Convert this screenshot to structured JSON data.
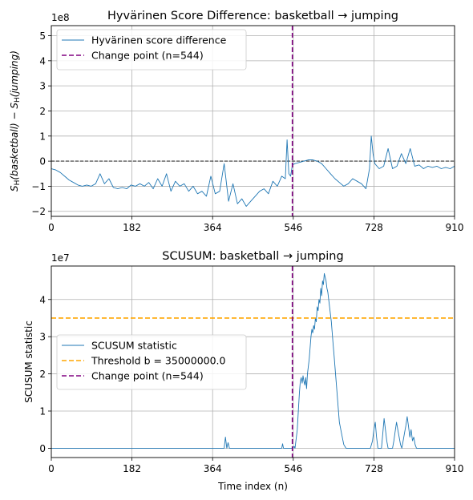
{
  "chart_data": [
    {
      "type": "line",
      "title": "Hyvärinen Score Difference: basketball → jumping",
      "xlabel": "",
      "ylabel_html": "S_H(basketball) − S_H(jumping)",
      "ylabel_parts": [
        "S",
        "H",
        "(basketball) − S",
        "H",
        "(jumping)"
      ],
      "y_multiplier_label": "1e8",
      "xlim": [
        0,
        910
      ],
      "ylim": [
        -2.2,
        5.4
      ],
      "x_ticks": [
        0,
        182,
        364,
        546,
        728,
        910
      ],
      "x_tick_labels": [
        "0",
        "182",
        "364",
        "546",
        "728",
        "910"
      ],
      "y_ticks": [
        -2,
        -1,
        0,
        1,
        2,
        3,
        4,
        5
      ],
      "y_tick_labels": [
        "−2",
        "−1",
        "0",
        "1",
        "2",
        "3",
        "4",
        "5"
      ],
      "grid": true,
      "legend_position": "upper-left",
      "hline": {
        "y": 0,
        "style": "dashed",
        "color": "#000000"
      },
      "change_point": {
        "x": 544,
        "label": "Change point (n=544)",
        "color": "#800080"
      },
      "series": [
        {
          "name": "Hyvärinen score difference",
          "color": "#1f77b4",
          "x": [
            0,
            10,
            20,
            30,
            40,
            50,
            60,
            70,
            80,
            90,
            100,
            110,
            120,
            130,
            140,
            150,
            160,
            170,
            180,
            190,
            200,
            210,
            220,
            230,
            240,
            250,
            260,
            270,
            280,
            290,
            300,
            310,
            320,
            330,
            340,
            350,
            360,
            370,
            380,
            390,
            400,
            410,
            420,
            430,
            440,
            450,
            460,
            470,
            480,
            490,
            500,
            510,
            520,
            528,
            532,
            536,
            540,
            544,
            550,
            560,
            570,
            580,
            590,
            600,
            610,
            620,
            630,
            640,
            650,
            660,
            670,
            680,
            690,
            700,
            710,
            718,
            722,
            726,
            730,
            740,
            750,
            760,
            770,
            780,
            790,
            800,
            810,
            820,
            830,
            840,
            850,
            860,
            870,
            880,
            890,
            900,
            910
          ],
          "y": [
            -0.3,
            -0.35,
            -0.45,
            -0.6,
            -0.75,
            -0.85,
            -0.95,
            -1.0,
            -0.95,
            -1.0,
            -0.9,
            -0.5,
            -0.9,
            -0.7,
            -1.05,
            -1.1,
            -1.05,
            -1.1,
            -0.95,
            -1.0,
            -0.9,
            -1.0,
            -0.85,
            -1.1,
            -0.7,
            -1.0,
            -0.5,
            -1.2,
            -0.8,
            -1.0,
            -0.9,
            -1.2,
            -1.0,
            -1.3,
            -1.2,
            -1.4,
            -0.6,
            -1.3,
            -1.2,
            -0.1,
            -1.6,
            -0.9,
            -1.7,
            -1.5,
            -1.8,
            -1.6,
            -1.4,
            -1.2,
            -1.1,
            -1.3,
            -0.8,
            -1.0,
            -0.6,
            -0.7,
            0.85,
            -0.5,
            -0.6,
            -0.15,
            -0.1,
            -0.05,
            0.0,
            0.05,
            0.05,
            0.0,
            -0.1,
            -0.3,
            -0.5,
            -0.7,
            -0.85,
            -1.0,
            -0.9,
            -0.7,
            -0.8,
            -0.9,
            -1.1,
            -0.3,
            1.0,
            0.3,
            -0.1,
            -0.3,
            -0.2,
            0.5,
            -0.3,
            -0.2,
            0.3,
            -0.1,
            0.5,
            -0.2,
            -0.15,
            -0.3,
            -0.2,
            -0.25,
            -0.2,
            -0.3,
            -0.25,
            -0.3,
            -0.2
          ]
        }
      ]
    },
    {
      "type": "line",
      "title": "SCUSUM: basketball → jumping",
      "xlabel": "Time index (n)",
      "ylabel": "SCUSUM statistic",
      "y_multiplier_label": "1e7",
      "xlim": [
        0,
        910
      ],
      "ylim": [
        -0.25,
        4.9
      ],
      "x_ticks": [
        0,
        182,
        364,
        546,
        728,
        910
      ],
      "x_tick_labels": [
        "0",
        "182",
        "364",
        "546",
        "728",
        "910"
      ],
      "y_ticks": [
        0,
        1,
        2,
        3,
        4
      ],
      "y_tick_labels": [
        "0",
        "1",
        "2",
        "3",
        "4"
      ],
      "grid": true,
      "legend_position": "center-left",
      "threshold": {
        "y": 3.5,
        "label": "Threshold b = 35000000.0",
        "color": "#ffa500"
      },
      "change_point": {
        "x": 544,
        "label": "Change point (n=544)",
        "color": "#800080"
      },
      "series": [
        {
          "name": "SCUSUM statistic",
          "color": "#1f77b4",
          "x": [
            0,
            390,
            393,
            396,
            399,
            402,
            405,
            520,
            522,
            524,
            526,
            540,
            545,
            548,
            550,
            555,
            558,
            560,
            562,
            564,
            566,
            568,
            570,
            572,
            574,
            576,
            578,
            580,
            582,
            584,
            586,
            588,
            590,
            592,
            594,
            596,
            598,
            600,
            602,
            604,
            606,
            608,
            610,
            612,
            614,
            616,
            618,
            620,
            622,
            624,
            626,
            628,
            630,
            632,
            634,
            636,
            638,
            640,
            642,
            644,
            646,
            648,
            650,
            655,
            660,
            665,
            670,
            675,
            680,
            690,
            700,
            720,
            725,
            728,
            731,
            734,
            737,
            740,
            745,
            748,
            751,
            754,
            757,
            760,
            765,
            770,
            773,
            776,
            779,
            782,
            785,
            788,
            791,
            794,
            797,
            800,
            803,
            806,
            809,
            812,
            815,
            818,
            821,
            824,
            830,
            840,
            860,
            880,
            910
          ],
          "y": [
            0,
            0,
            0.3,
            0,
            0.15,
            0,
            0,
            0,
            0.12,
            0,
            0,
            0,
            0,
            0.05,
            0,
            0.5,
            1.1,
            1.5,
            1.8,
            1.9,
            1.75,
            1.95,
            1.8,
            1.7,
            1.9,
            1.6,
            2.0,
            2.2,
            2.4,
            2.7,
            3.0,
            3.2,
            3.1,
            3.3,
            3.2,
            3.5,
            3.4,
            3.8,
            3.7,
            4.0,
            3.9,
            4.3,
            4.1,
            4.5,
            4.4,
            4.7,
            4.6,
            4.5,
            4.3,
            4.2,
            4.0,
            3.8,
            3.6,
            3.4,
            3.1,
            2.8,
            2.5,
            2.2,
            1.9,
            1.6,
            1.3,
            1.0,
            0.7,
            0.4,
            0.1,
            0,
            0,
            0,
            0,
            0,
            0,
            0,
            0.2,
            0.5,
            0.7,
            0.3,
            0,
            0,
            0,
            0.4,
            0.8,
            0.5,
            0.2,
            0,
            0,
            0,
            0.2,
            0.45,
            0.7,
            0.5,
            0.3,
            0.1,
            0,
            0.2,
            0.4,
            0.6,
            0.85,
            0.6,
            0.3,
            0.5,
            0.2,
            0.3,
            0.1,
            0,
            0,
            0,
            0,
            0,
            0
          ]
        }
      ]
    }
  ]
}
